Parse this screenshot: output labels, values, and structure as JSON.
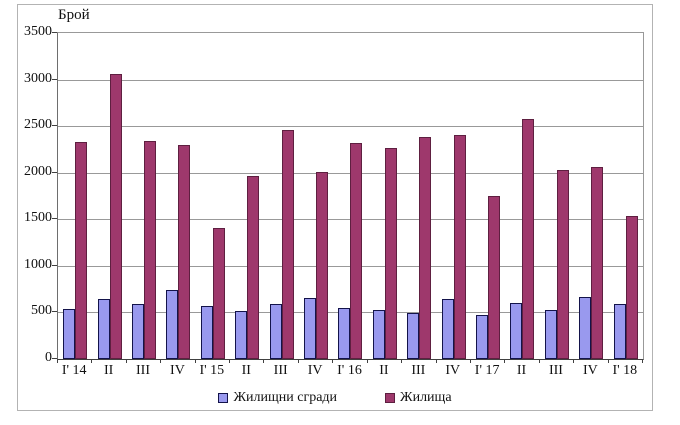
{
  "chart_data": {
    "type": "bar",
    "title": "Брой",
    "categories": [
      "I' 14",
      "II",
      "III",
      "IV",
      "I' 15",
      "II",
      "III",
      "IV",
      "I' 16",
      "II",
      "III",
      "IV",
      "I' 17",
      "II",
      "III",
      "IV",
      "I' 18"
    ],
    "series": [
      {
        "name": "Жилищни сгради",
        "color": "#9999EE",
        "border_color": "#13134A",
        "values": [
          530,
          630,
          580,
          725,
          555,
          505,
          585,
          640,
          540,
          520,
          480,
          630,
          460,
          590,
          515,
          655,
          575
        ]
      },
      {
        "name": "Жилища",
        "color": "#9E386C",
        "border_color": "#5E1F40",
        "values": [
          2320,
          3050,
          2330,
          2290,
          1400,
          1950,
          2450,
          2000,
          2310,
          2250,
          2370,
          2390,
          1740,
          2570,
          2020,
          2050,
          1530
        ]
      }
    ],
    "ylim": [
      0,
      3500
    ],
    "ytick_step": 500,
    "grid": true,
    "legend_position": "bottom",
    "colors": {
      "gridline": "#999999",
      "axis": "#404040",
      "figure_border": "#b3b3b3",
      "background": "#ffffff"
    }
  }
}
